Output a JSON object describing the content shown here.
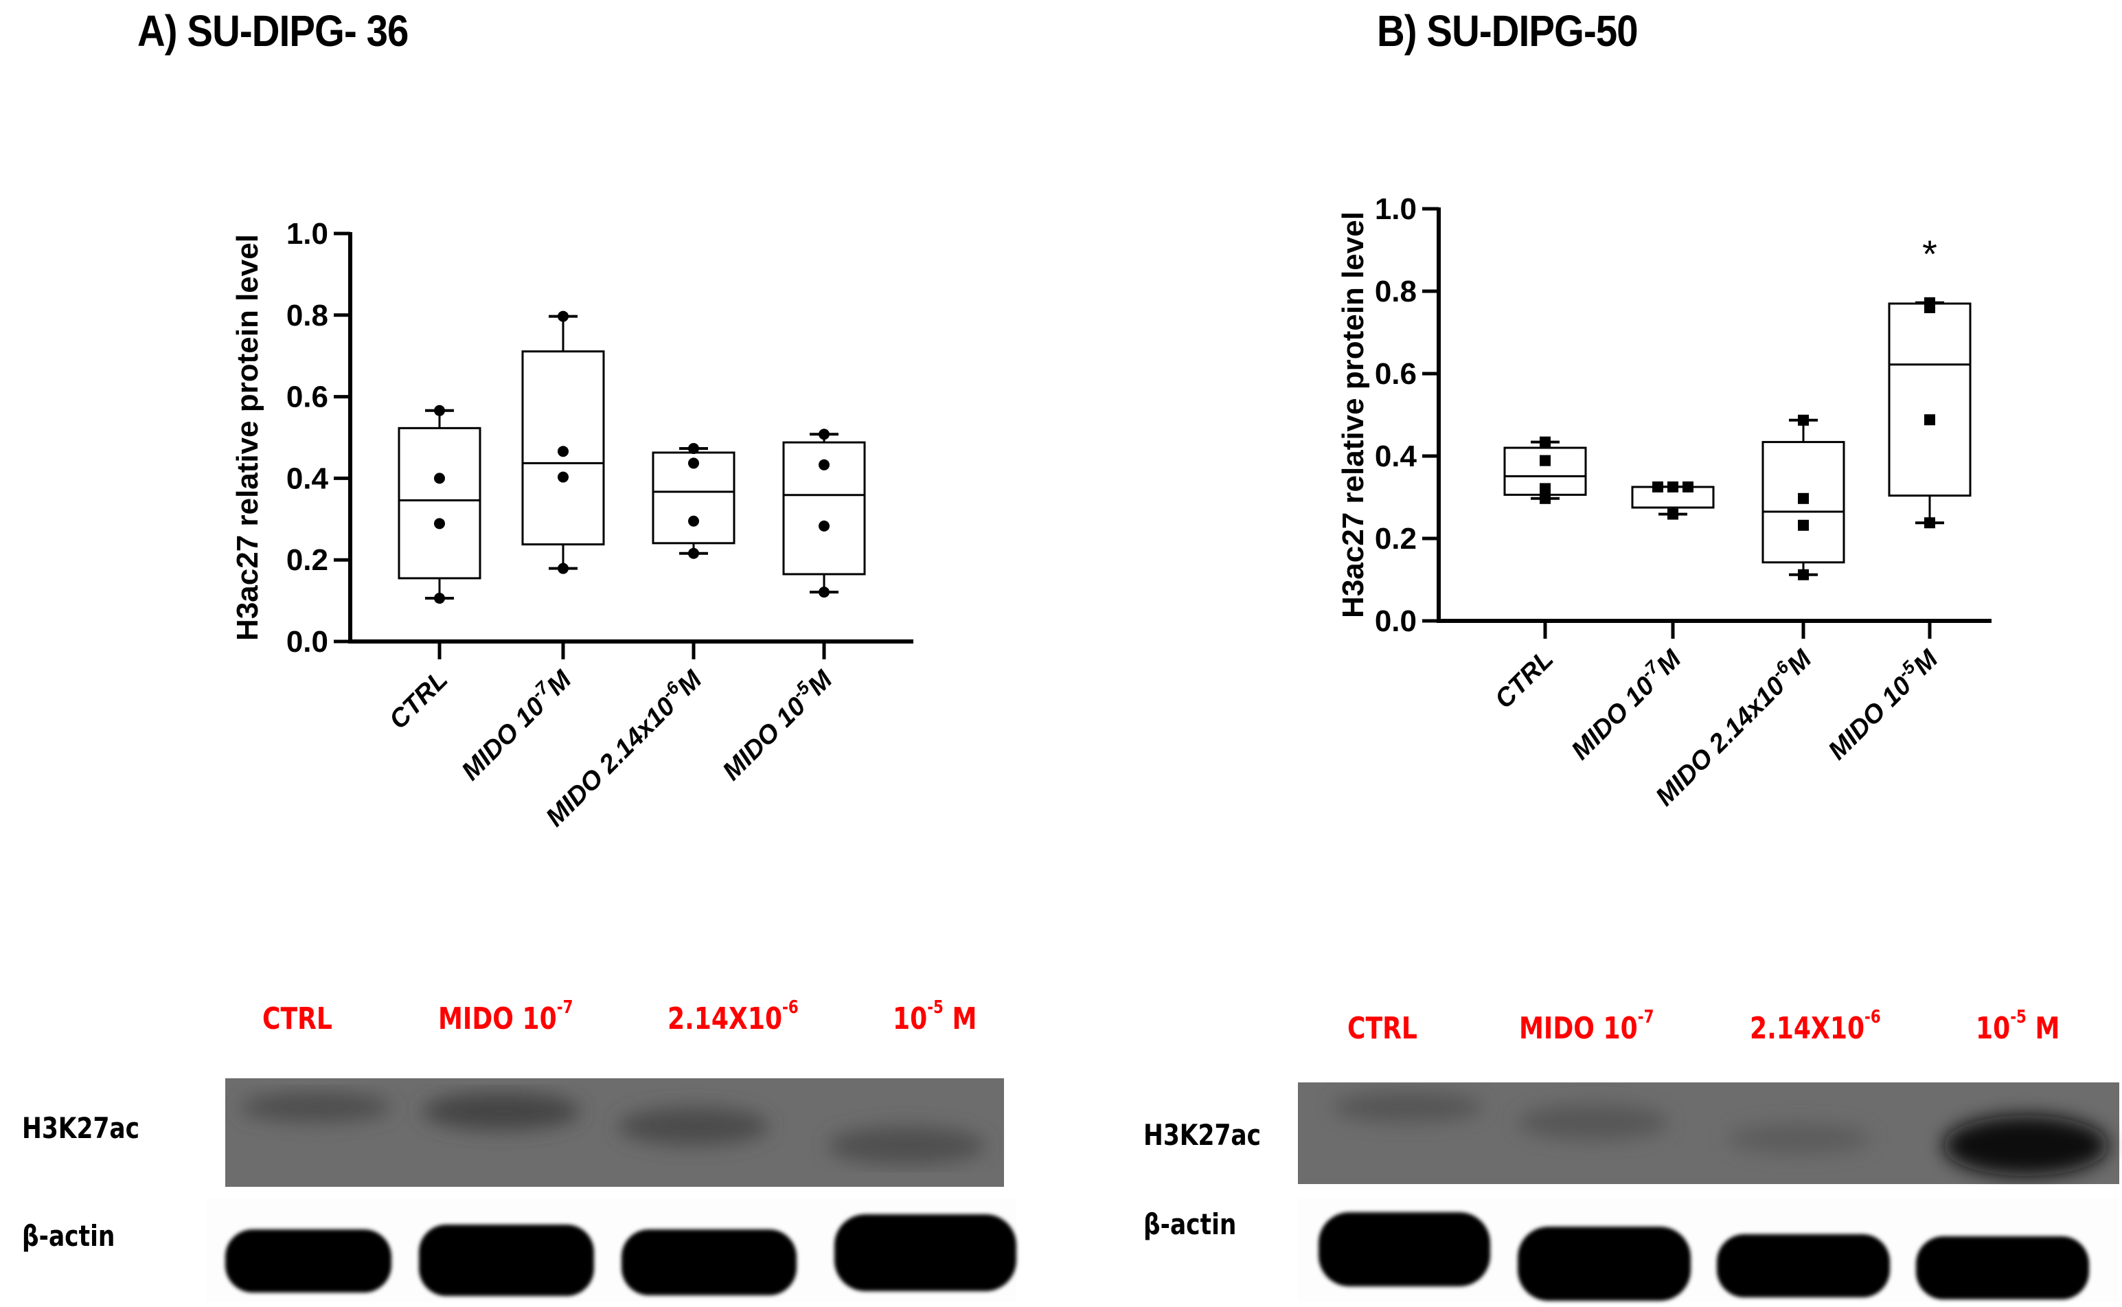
{
  "panels": {
    "a": {
      "title": "A) SU-DIPG- 36"
    },
    "b": {
      "title": "B) SU-DIPG-50"
    }
  },
  "blots": {
    "a": {
      "lanes": [
        {
          "base": "CTRL",
          "sup": ""
        },
        {
          "base": "MIDO 10",
          "sup": "-7",
          "tail": ""
        },
        {
          "base": "2.14X10",
          "sup": "-6",
          "tail": ""
        },
        {
          "base": "10",
          "sup": "-5",
          "tail": " M"
        }
      ],
      "rows": [
        "H3K27ac",
        "β-actin"
      ]
    },
    "b": {
      "lanes": [
        {
          "base": "CTRL",
          "sup": ""
        },
        {
          "base": "MIDO 10",
          "sup": "-7",
          "tail": ""
        },
        {
          "base": "2.14X10",
          "sup": "-6",
          "tail": ""
        },
        {
          "base": "10",
          "sup": "-5",
          "tail": " M"
        }
      ],
      "rows": [
        "H3K27ac",
        "β-actin"
      ]
    }
  },
  "colors": {
    "lane_label": "#ff0000",
    "membrane": "#6d6d6d",
    "band": "#000000"
  },
  "chart_data": [
    {
      "type": "box",
      "title": "A) SU-DIPG- 36",
      "xlabel": "",
      "ylabel": "H3ac27 relative protein level",
      "ylim": [
        0,
        1.0
      ],
      "yticks": [
        "0.0",
        "0.2",
        "0.4",
        "0.6",
        "0.8",
        "1.0"
      ],
      "categories": [
        "CTRL",
        "MIDO 10^-7 M",
        "MIDO 2.14x10^-6 M",
        "MIDO 10^-5 M"
      ],
      "tick_labels": [
        {
          "base": "CTRL",
          "sup": "",
          "tail": ""
        },
        {
          "base": "MIDO 10",
          "sup": "-7",
          "tail": "M"
        },
        {
          "base": "MIDO 2.14x10",
          "sup": "-6",
          "tail": "M"
        },
        {
          "base": "MIDO 10",
          "sup": "-5",
          "tail": "M"
        }
      ],
      "marker": "circle",
      "boxes": [
        {
          "min": 0.106,
          "q1": 0.155,
          "median": 0.346,
          "q3": 0.523,
          "max": 0.566,
          "points": [
            0.566,
            0.4,
            0.289,
            0.106
          ]
        },
        {
          "min": 0.179,
          "q1": 0.238,
          "median": 0.437,
          "q3": 0.711,
          "max": 0.797,
          "points": [
            0.797,
            0.466,
            0.403,
            0.179
          ]
        },
        {
          "min": 0.216,
          "q1": 0.241,
          "median": 0.367,
          "q3": 0.463,
          "max": 0.473,
          "points": [
            0.473,
            0.437,
            0.295,
            0.216
          ]
        },
        {
          "min": 0.121,
          "q1": 0.165,
          "median": 0.359,
          "q3": 0.488,
          "max": 0.508,
          "points": [
            0.508,
            0.433,
            0.283,
            0.121
          ]
        }
      ],
      "annotations": []
    },
    {
      "type": "box",
      "title": "B) SU-DIPG-50",
      "xlabel": "",
      "ylabel": "H3ac27 relative protein level",
      "ylim": [
        0,
        1.0
      ],
      "yticks": [
        "0.0",
        "0.2",
        "0.4",
        "0.6",
        "0.8",
        "1.0"
      ],
      "categories": [
        "CTRL",
        "MIDO 10^-7 M",
        "MIDO 2.14x10^-6 M",
        "MIDO 10^-5 M"
      ],
      "tick_labels": [
        {
          "base": "CTRL",
          "sup": "",
          "tail": ""
        },
        {
          "base": "MIDO 10",
          "sup": "-7",
          "tail": "M"
        },
        {
          "base": "MIDO 2.14x10",
          "sup": "-6",
          "tail": "M"
        },
        {
          "base": "MIDO 10",
          "sup": "-5",
          "tail": "M"
        }
      ],
      "marker": "square",
      "boxes": [
        {
          "min": 0.297,
          "q1": 0.306,
          "median": 0.351,
          "q3": 0.42,
          "max": 0.434,
          "points": [
            0.434,
            0.389,
            0.321,
            0.297
          ]
        },
        {
          "min": 0.259,
          "q1": 0.275,
          "median": 0.325,
          "q3": 0.325,
          "max": 0.325,
          "points": [
            0.325,
            0.325,
            0.325,
            0.259
          ]
        },
        {
          "min": 0.112,
          "q1": 0.142,
          "median": 0.265,
          "q3": 0.434,
          "max": 0.487,
          "points": [
            0.487,
            0.297,
            0.232,
            0.112
          ]
        },
        {
          "min": 0.238,
          "q1": 0.304,
          "median": 0.622,
          "q3": 0.77,
          "max": 0.772,
          "points": [
            0.772,
            0.76,
            0.488,
            0.238
          ]
        }
      ],
      "annotations": [
        {
          "category": 3,
          "text": "*"
        }
      ]
    }
  ]
}
